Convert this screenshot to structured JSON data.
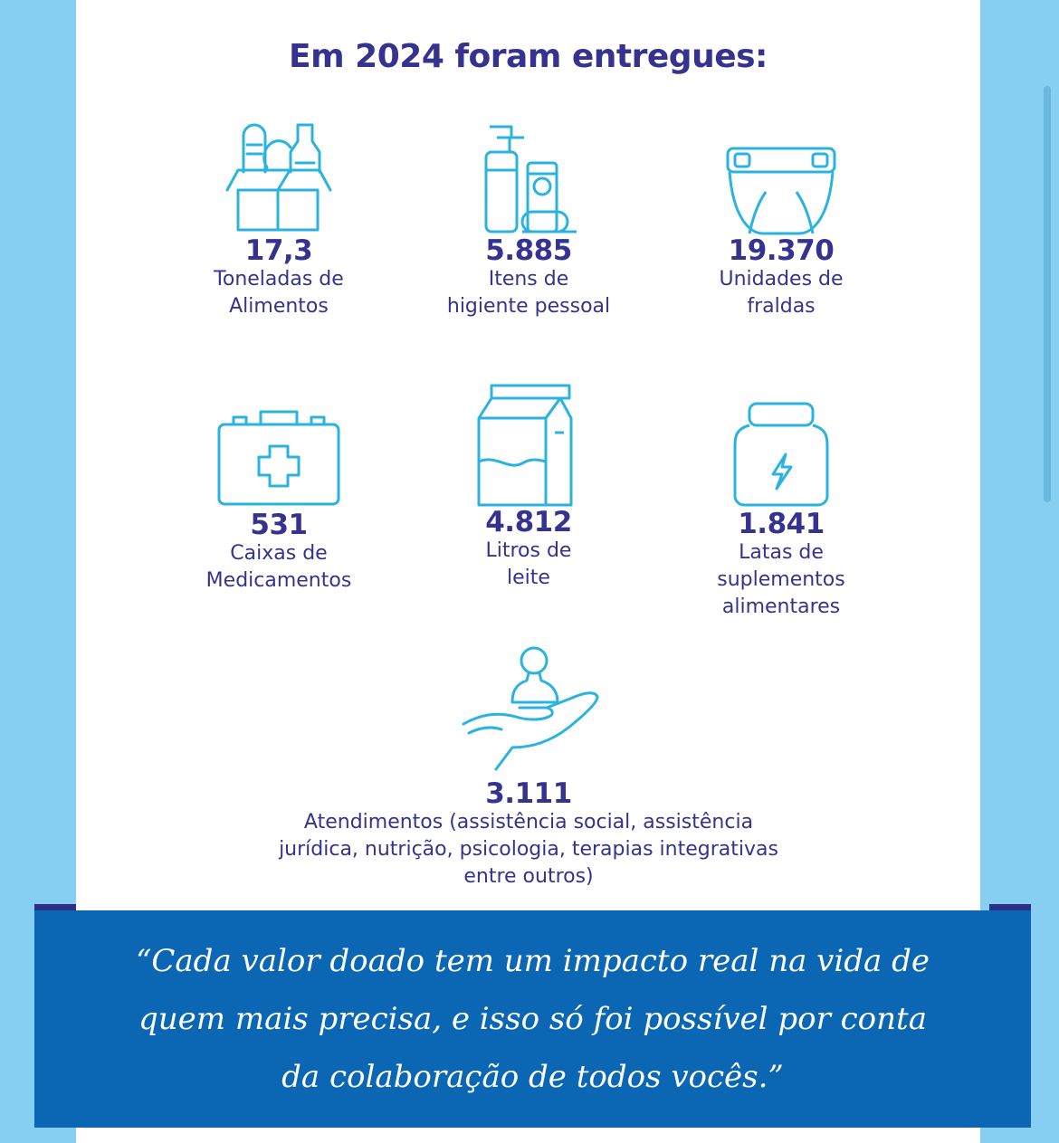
{
  "title": "Em 2024 foram entregues:",
  "accent_color": "#35338f",
  "icon_color": "#2bb3e0",
  "items": [
    {
      "icon": "grocery-box-icon",
      "number": "17,3",
      "label": "Toneladas de\nAlimentos"
    },
    {
      "icon": "hygiene-bottles-icon",
      "number": "5.885",
      "label": "Itens de\nhigiente pessoal"
    },
    {
      "icon": "diaper-icon",
      "number": "19.370",
      "label": "Unidades de\nfraldas"
    },
    {
      "icon": "medicine-kit-icon",
      "number": "531",
      "label": "Caixas de\nMedicamentos"
    },
    {
      "icon": "milk-carton-icon",
      "number": "4.812",
      "label": "Litros de\nleite"
    },
    {
      "icon": "supplement-jar-icon",
      "number": "1.841",
      "label": "Latas de\nsuplementos\nalimentares"
    }
  ],
  "care": {
    "icon": "hand-person-icon",
    "number": "3.111",
    "label": "Atendimentos (assistência social, assistência\njurídica, nutrição, psicologia, terapias integrativas\nentre outros)"
  },
  "quote": "“Cada valor doado tem um impacto real na vida de\nquem mais precisa, e isso só foi possível por conta\nda colaboração de todos vocês.”"
}
